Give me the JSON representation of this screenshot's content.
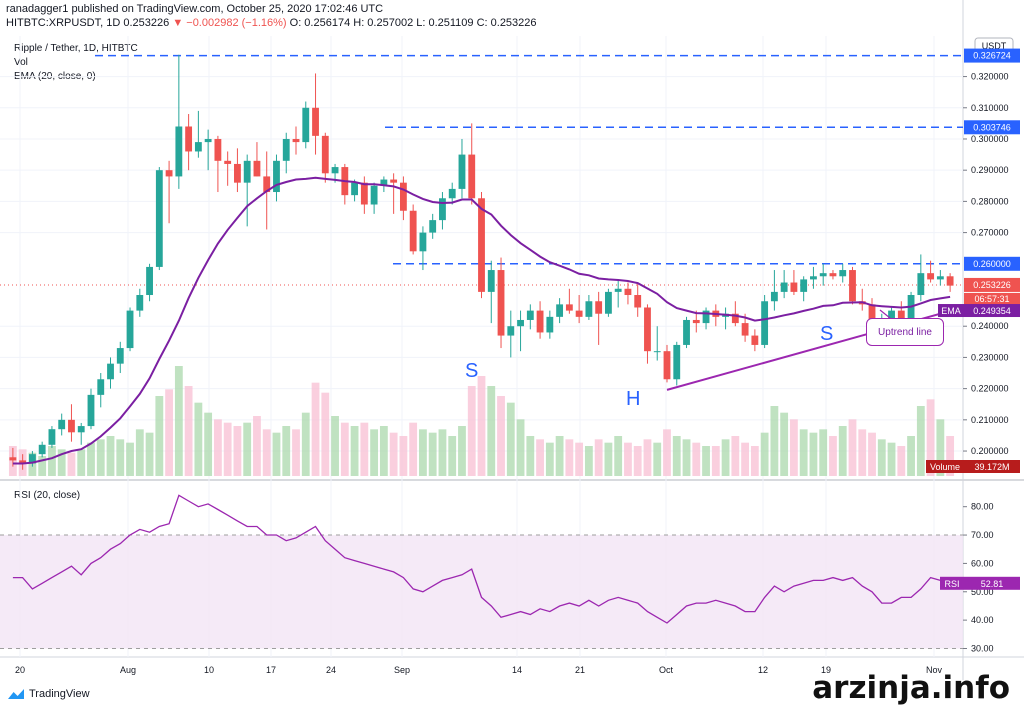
{
  "header": {
    "line1": "ranadagger1 published on TradingView.com, October 25, 2020 17:02:46 UTC",
    "symbol": "HITBTC:XRPUSDT, 1D",
    "last": "0.253226",
    "change": "−0.002982 (−1.16%)",
    "ohlc": "O: 0.256174  H: 0.257002  L: 0.251109  C: 0.253226"
  },
  "legend": {
    "pair": "Ripple / Tether, 1D, HITBTC",
    "vol": "Vol",
    "ema": "EMA (20, close, 0)",
    "rsi": "RSI (20, close)"
  },
  "annotations": {
    "left_shoulder": "S",
    "head": "H",
    "right_shoulder": "S",
    "trendline": "Uptrend line"
  },
  "footer": {
    "brand": "TradingView"
  },
  "watermark": "arzinja.info",
  "colors": {
    "up": "#26a69a",
    "down": "#ef5350",
    "ema": "#7b1fa2",
    "rsi": "#9c27b0",
    "level": "#2962ff",
    "trend": "#9c27b0"
  },
  "chart_data": {
    "type": "candlestick",
    "currency_badge": "USDT",
    "x_ticks": [
      "20",
      "Aug",
      "10",
      "17",
      "24",
      "Sep",
      "14",
      "21",
      "Oct",
      "12",
      "19",
      "Nov"
    ],
    "y_ticks": [
      "0.320000",
      "0.310000",
      "0.300000",
      "0.290000",
      "0.280000",
      "0.270000",
      "0.240000",
      "0.230000",
      "0.220000",
      "0.210000",
      "0.200000"
    ],
    "ylim": [
      0.192,
      0.333
    ],
    "levels": [
      {
        "value": 0.326724,
        "label": "0.326724"
      },
      {
        "value": 0.303746,
        "label": "0.303746"
      },
      {
        "value": 0.26,
        "label": "0.260000"
      }
    ],
    "last_price": {
      "value": 0.253226,
      "label": "0.253226",
      "countdown": "06:57:31"
    },
    "ema_label": {
      "name": "EMA",
      "value": 0.249354,
      "label": "0.249354"
    },
    "volume_label": {
      "name": "Volume",
      "value": "39.172M"
    },
    "candles": [
      [
        0.198,
        0.201,
        0.195,
        0.197
      ],
      [
        0.197,
        0.199,
        0.194,
        0.196
      ],
      [
        0.196,
        0.2,
        0.195,
        0.199
      ],
      [
        0.199,
        0.203,
        0.198,
        0.202
      ],
      [
        0.202,
        0.208,
        0.201,
        0.207
      ],
      [
        0.207,
        0.212,
        0.205,
        0.21
      ],
      [
        0.21,
        0.215,
        0.203,
        0.206
      ],
      [
        0.206,
        0.209,
        0.202,
        0.208
      ],
      [
        0.208,
        0.22,
        0.207,
        0.218
      ],
      [
        0.218,
        0.225,
        0.214,
        0.223
      ],
      [
        0.223,
        0.23,
        0.22,
        0.228
      ],
      [
        0.228,
        0.235,
        0.225,
        0.233
      ],
      [
        0.233,
        0.246,
        0.232,
        0.245
      ],
      [
        0.245,
        0.252,
        0.243,
        0.25
      ],
      [
        0.25,
        0.26,
        0.248,
        0.259
      ],
      [
        0.259,
        0.291,
        0.258,
        0.29
      ],
      [
        0.29,
        0.293,
        0.273,
        0.288
      ],
      [
        0.288,
        0.327,
        0.284,
        0.304
      ],
      [
        0.304,
        0.308,
        0.29,
        0.296
      ],
      [
        0.296,
        0.309,
        0.294,
        0.299
      ],
      [
        0.299,
        0.303,
        0.29,
        0.3
      ],
      [
        0.3,
        0.301,
        0.283,
        0.293
      ],
      [
        0.293,
        0.296,
        0.285,
        0.292
      ],
      [
        0.292,
        0.297,
        0.283,
        0.286
      ],
      [
        0.286,
        0.295,
        0.272,
        0.293
      ],
      [
        0.293,
        0.299,
        0.288,
        0.288
      ],
      [
        0.288,
        0.296,
        0.271,
        0.283
      ],
      [
        0.283,
        0.295,
        0.28,
        0.293
      ],
      [
        0.293,
        0.302,
        0.289,
        0.3
      ],
      [
        0.3,
        0.304,
        0.295,
        0.299
      ],
      [
        0.299,
        0.312,
        0.297,
        0.31
      ],
      [
        0.31,
        0.321,
        0.295,
        0.301
      ],
      [
        0.301,
        0.302,
        0.286,
        0.289
      ],
      [
        0.289,
        0.292,
        0.286,
        0.291
      ],
      [
        0.291,
        0.292,
        0.279,
        0.282
      ],
      [
        0.282,
        0.287,
        0.28,
        0.286
      ],
      [
        0.286,
        0.288,
        0.276,
        0.279
      ],
      [
        0.279,
        0.286,
        0.276,
        0.285
      ],
      [
        0.285,
        0.288,
        0.283,
        0.287
      ],
      [
        0.287,
        0.289,
        0.276,
        0.286
      ],
      [
        0.286,
        0.288,
        0.274,
        0.277
      ],
      [
        0.277,
        0.279,
        0.263,
        0.264
      ],
      [
        0.264,
        0.272,
        0.258,
        0.27
      ],
      [
        0.27,
        0.276,
        0.268,
        0.274
      ],
      [
        0.274,
        0.283,
        0.271,
        0.281
      ],
      [
        0.281,
        0.286,
        0.279,
        0.284
      ],
      [
        0.284,
        0.3,
        0.281,
        0.295
      ],
      [
        0.295,
        0.305,
        0.279,
        0.281
      ],
      [
        0.281,
        0.283,
        0.249,
        0.251
      ],
      [
        0.251,
        0.261,
        0.241,
        0.258
      ],
      [
        0.258,
        0.262,
        0.233,
        0.237
      ],
      [
        0.237,
        0.245,
        0.23,
        0.24
      ],
      [
        0.24,
        0.245,
        0.232,
        0.242
      ],
      [
        0.242,
        0.247,
        0.239,
        0.245
      ],
      [
        0.245,
        0.248,
        0.236,
        0.238
      ],
      [
        0.238,
        0.245,
        0.236,
        0.243
      ],
      [
        0.243,
        0.249,
        0.241,
        0.247
      ],
      [
        0.247,
        0.252,
        0.244,
        0.245
      ],
      [
        0.245,
        0.25,
        0.241,
        0.243
      ],
      [
        0.243,
        0.25,
        0.242,
        0.248
      ],
      [
        0.248,
        0.251,
        0.234,
        0.244
      ],
      [
        0.244,
        0.252,
        0.243,
        0.251
      ],
      [
        0.251,
        0.255,
        0.246,
        0.252
      ],
      [
        0.252,
        0.254,
        0.247,
        0.25
      ],
      [
        0.25,
        0.254,
        0.243,
        0.246
      ],
      [
        0.246,
        0.247,
        0.228,
        0.232
      ],
      [
        0.232,
        0.24,
        0.229,
        0.232
      ],
      [
        0.232,
        0.234,
        0.222,
        0.223
      ],
      [
        0.223,
        0.235,
        0.221,
        0.234
      ],
      [
        0.234,
        0.243,
        0.233,
        0.242
      ],
      [
        0.242,
        0.245,
        0.238,
        0.241
      ],
      [
        0.241,
        0.246,
        0.239,
        0.245
      ],
      [
        0.245,
        0.247,
        0.24,
        0.243
      ],
      [
        0.243,
        0.246,
        0.239,
        0.244
      ],
      [
        0.244,
        0.248,
        0.24,
        0.241
      ],
      [
        0.241,
        0.244,
        0.235,
        0.237
      ],
      [
        0.237,
        0.239,
        0.232,
        0.234
      ],
      [
        0.234,
        0.25,
        0.233,
        0.248
      ],
      [
        0.248,
        0.258,
        0.245,
        0.251
      ],
      [
        0.251,
        0.258,
        0.249,
        0.254
      ],
      [
        0.254,
        0.258,
        0.25,
        0.251
      ],
      [
        0.251,
        0.256,
        0.248,
        0.255
      ],
      [
        0.255,
        0.259,
        0.252,
        0.256
      ],
      [
        0.256,
        0.26,
        0.253,
        0.257
      ],
      [
        0.257,
        0.258,
        0.255,
        0.256
      ],
      [
        0.256,
        0.26,
        0.254,
        0.258
      ],
      [
        0.258,
        0.259,
        0.247,
        0.248
      ],
      [
        0.248,
        0.252,
        0.245,
        0.247
      ],
      [
        0.247,
        0.249,
        0.239,
        0.24
      ],
      [
        0.24,
        0.244,
        0.239,
        0.241
      ],
      [
        0.241,
        0.246,
        0.24,
        0.245
      ],
      [
        0.245,
        0.248,
        0.24,
        0.242
      ],
      [
        0.242,
        0.251,
        0.241,
        0.25
      ],
      [
        0.25,
        0.263,
        0.248,
        0.257
      ],
      [
        0.257,
        0.261,
        0.254,
        0.255
      ],
      [
        0.255,
        0.258,
        0.253,
        0.256
      ],
      [
        0.256,
        0.257,
        0.251,
        0.253
      ]
    ],
    "ema": [
      0.196,
      0.196,
      0.1963,
      0.197,
      0.1977,
      0.199,
      0.2,
      0.2006,
      0.2024,
      0.2047,
      0.2075,
      0.2105,
      0.2143,
      0.2183,
      0.2233,
      0.2295,
      0.2354,
      0.2418,
      0.249,
      0.2555,
      0.2612,
      0.2665,
      0.2709,
      0.2747,
      0.2785,
      0.281,
      0.2833,
      0.2853,
      0.2862,
      0.287,
      0.2872,
      0.2876,
      0.2872,
      0.2869,
      0.2865,
      0.2862,
      0.2855,
      0.2855,
      0.2852,
      0.2848,
      0.2838,
      0.2822,
      0.2808,
      0.2798,
      0.2795,
      0.2796,
      0.2806,
      0.2806,
      0.2776,
      0.2758,
      0.2722,
      0.2692,
      0.2666,
      0.2645,
      0.2623,
      0.2605,
      0.2594,
      0.2582,
      0.2568,
      0.2563,
      0.2553,
      0.255,
      0.2548,
      0.2545,
      0.2538,
      0.2521,
      0.2504,
      0.2477,
      0.2458,
      0.245,
      0.2442,
      0.2441,
      0.2439,
      0.2437,
      0.2434,
      0.2428,
      0.2418,
      0.2422,
      0.2428,
      0.2435,
      0.2441,
      0.2449,
      0.2456,
      0.2465,
      0.2467,
      0.2475,
      0.2476,
      0.2477,
      0.2467,
      0.2464,
      0.2462,
      0.246,
      0.2463,
      0.2473,
      0.2484,
      0.2489,
      0.2494
    ],
    "volume": [
      9,
      8,
      7,
      6,
      9,
      8,
      7,
      8,
      10,
      11,
      12,
      11,
      10,
      14,
      13,
      24,
      26,
      33,
      27,
      22,
      19,
      17,
      16,
      15,
      16,
      18,
      14,
      13,
      15,
      14,
      19,
      28,
      25,
      18,
      16,
      15,
      16,
      14,
      15,
      13,
      12,
      16,
      14,
      13,
      14,
      12,
      15,
      27,
      30,
      27,
      24,
      22,
      17,
      12,
      11,
      10,
      12,
      11,
      10,
      9,
      11,
      10,
      12,
      10,
      9,
      11,
      10,
      14,
      12,
      11,
      10,
      9,
      9,
      11,
      12,
      10,
      9,
      13,
      21,
      19,
      17,
      14,
      13,
      14,
      12,
      15,
      17,
      14,
      13,
      11,
      10,
      9,
      12,
      21,
      23,
      17,
      12
    ],
    "rsi": {
      "levels": [
        70,
        30
      ],
      "value_label": "52.81",
      "y_ticks": [
        "80.00",
        "70.00",
        "60.00",
        "50.00",
        "40.00",
        "30.00"
      ],
      "ylim": [
        27,
        88
      ],
      "values": [
        55,
        55,
        51,
        53,
        55,
        57,
        59,
        56,
        60,
        62,
        65,
        67,
        70,
        72,
        71,
        73,
        74,
        84,
        82,
        80,
        81,
        79,
        77,
        75,
        73,
        73,
        70,
        70,
        68,
        69,
        71,
        73,
        68,
        65,
        62,
        61,
        60,
        59,
        58,
        57,
        55,
        51,
        50,
        52,
        54,
        55,
        56,
        58,
        48,
        45,
        41,
        42,
        43,
        42,
        44,
        43,
        45,
        46,
        45,
        47,
        45,
        47,
        48,
        47,
        46,
        43,
        41,
        39,
        42,
        45,
        46,
        46,
        47,
        46,
        45,
        43,
        43,
        48,
        52,
        50,
        52,
        53,
        54,
        54,
        55,
        54,
        55,
        52,
        50,
        46,
        46,
        48,
        48,
        51,
        55,
        54,
        53
      ]
    }
  }
}
